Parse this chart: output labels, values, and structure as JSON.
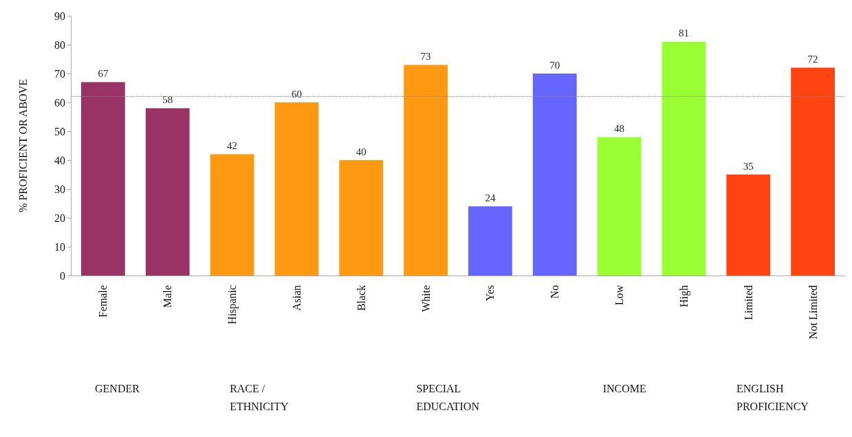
{
  "chart_data": {
    "type": "bar",
    "ylabel": "% PROFICIENT OR ABOVE",
    "categories": [
      "Female",
      "Male",
      "Hispanic",
      "Asian",
      "Black",
      "White",
      "Yes",
      "No",
      "Low",
      "High",
      "Limited",
      "Not Limited"
    ],
    "values": [
      67,
      58,
      42,
      60,
      40,
      73,
      24,
      70,
      48,
      81,
      35,
      72
    ],
    "colors": [
      "#993366",
      "#993366",
      "#ff9912",
      "#ff9912",
      "#ff9912",
      "#ff9912",
      "#6666ff",
      "#6666ff",
      "#99ff33",
      "#99ff33",
      "#ff4411",
      "#ff4411"
    ],
    "ylim": [
      0,
      90
    ],
    "yticks": [
      0,
      10,
      20,
      30,
      40,
      50,
      60,
      70,
      80,
      90
    ],
    "grid": false,
    "data_labels": true,
    "ref_lines": [
      {
        "axis": "y",
        "value": 62,
        "color": "#888888",
        "line_style": "dotted"
      }
    ],
    "annotations": [
      "GENDER",
      "RACE / ETHNICITY",
      "SPECIAL EDUCATION",
      "INCOME",
      "ENGLISH PROFICIENCY"
    ]
  }
}
